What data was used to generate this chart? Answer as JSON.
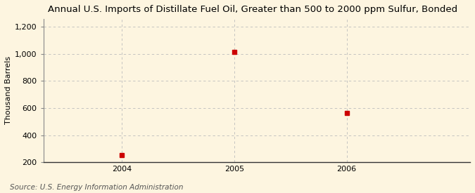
{
  "title": "Annual U.S. Imports of Distillate Fuel Oil, Greater than 500 to 2000 ppm Sulfur, Bonded",
  "xlabel": "",
  "ylabel": "Thousand Barrels",
  "x_values": [
    2004,
    2005,
    2006
  ],
  "y_values": [
    253,
    1017,
    563
  ],
  "x_ticks": [
    2004,
    2005,
    2006
  ],
  "y_ticks": [
    200,
    400,
    600,
    800,
    1000,
    1200
  ],
  "y_tick_labels": [
    "200",
    "400",
    "600",
    "800",
    "1,000",
    "1,200"
  ],
  "ylim": [
    200,
    1260
  ],
  "xlim": [
    2003.3,
    2007.1
  ],
  "marker_color": "#cc0000",
  "marker": "s",
  "marker_size": 4,
  "bg_color": "#fdf5e0",
  "plot_bg_color": "#fdf5e0",
  "grid_color": "#bbbbbb",
  "source_text": "Source: U.S. Energy Information Administration",
  "title_fontsize": 9.5,
  "label_fontsize": 8,
  "tick_fontsize": 8,
  "source_fontsize": 7.5
}
